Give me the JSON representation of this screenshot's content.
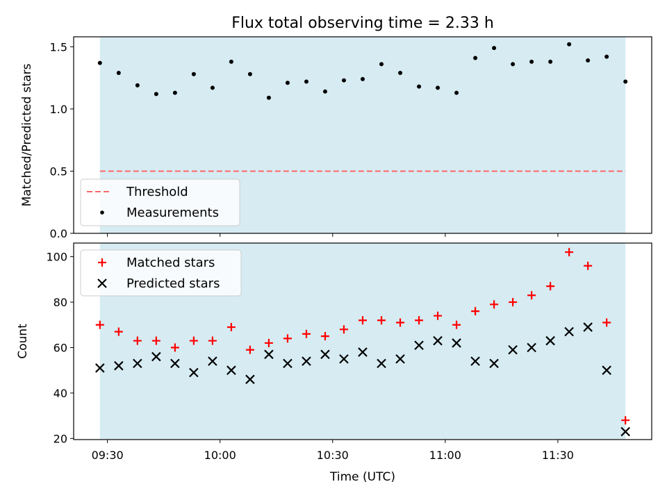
{
  "figure": {
    "title": "Flux total observing time = 2.33 h",
    "xlabel": "Time (UTC)",
    "colors": {
      "shade": "#add8e6",
      "threshold": "#ff6666",
      "matched": "#ff0000",
      "measurement": "#000000",
      "predicted": "#000000"
    }
  },
  "chart_data": [
    {
      "type": "scatter",
      "ylabel": "Matched/Predicted stars",
      "ylim": [
        0.0,
        1.58
      ],
      "yticks": [
        0.0,
        0.5,
        1.0,
        1.5
      ],
      "ytick_labels": [
        "0.0",
        "0.5",
        "1.0",
        "1.5"
      ],
      "xlim": [
        "09:21",
        "11:55"
      ],
      "shaded_span": [
        "09:28",
        "11:48"
      ],
      "threshold": {
        "name": "Threshold",
        "value": 0.5
      },
      "series": [
        {
          "name": "Measurements",
          "marker": "dot",
          "x": [
            "09:28",
            "09:33",
            "09:38",
            "09:43",
            "09:48",
            "09:53",
            "09:58",
            "10:03",
            "10:08",
            "10:13",
            "10:18",
            "10:23",
            "10:28",
            "10:33",
            "10:38",
            "10:43",
            "10:48",
            "10:53",
            "10:58",
            "11:03",
            "11:08",
            "11:13",
            "11:18",
            "11:23",
            "11:28",
            "11:33",
            "11:38",
            "11:43",
            "11:48"
          ],
          "y": [
            1.37,
            1.29,
            1.19,
            1.12,
            1.13,
            1.28,
            1.17,
            1.38,
            1.28,
            1.09,
            1.21,
            1.22,
            1.14,
            1.23,
            1.24,
            1.36,
            1.29,
            1.18,
            1.17,
            1.13,
            1.41,
            1.49,
            1.36,
            1.38,
            1.38,
            1.52,
            1.39,
            1.42,
            1.22
          ]
        }
      ],
      "legend": {
        "placement": "lower-left",
        "entries": [
          "Threshold",
          "Measurements"
        ]
      }
    },
    {
      "type": "scatter",
      "ylabel": "Count",
      "ylim": [
        19.5,
        106
      ],
      "yticks": [
        20,
        40,
        60,
        80,
        100
      ],
      "ytick_labels": [
        "20",
        "40",
        "60",
        "80",
        "100"
      ],
      "xlim": [
        "09:21",
        "11:55"
      ],
      "xticks": [
        "09:30",
        "10:00",
        "10:30",
        "11:00",
        "11:30"
      ],
      "shaded_span": [
        "09:28",
        "11:48"
      ],
      "series": [
        {
          "name": "Matched stars",
          "marker": "plus",
          "x": [
            "09:28",
            "09:33",
            "09:38",
            "09:43",
            "09:48",
            "09:53",
            "09:58",
            "10:03",
            "10:08",
            "10:13",
            "10:18",
            "10:23",
            "10:28",
            "10:33",
            "10:38",
            "10:43",
            "10:48",
            "10:53",
            "10:58",
            "11:03",
            "11:08",
            "11:13",
            "11:18",
            "11:23",
            "11:28",
            "11:33",
            "11:38",
            "11:43",
            "11:48"
          ],
          "y": [
            70,
            67,
            63,
            63,
            60,
            63,
            63,
            69,
            59,
            62,
            64,
            66,
            65,
            68,
            72,
            72,
            71,
            72,
            74,
            70,
            76,
            79,
            80,
            83,
            87,
            102,
            96,
            71,
            28
          ]
        },
        {
          "name": "Predicted stars",
          "marker": "x",
          "x": [
            "09:28",
            "09:33",
            "09:38",
            "09:43",
            "09:48",
            "09:53",
            "09:58",
            "10:03",
            "10:08",
            "10:13",
            "10:18",
            "10:23",
            "10:28",
            "10:33",
            "10:38",
            "10:43",
            "10:48",
            "10:53",
            "10:58",
            "11:03",
            "11:08",
            "11:13",
            "11:18",
            "11:23",
            "11:28",
            "11:33",
            "11:38",
            "11:43",
            "11:48"
          ],
          "y": [
            51,
            52,
            53,
            56,
            53,
            49,
            54,
            50,
            46,
            57,
            53,
            54,
            57,
            55,
            58,
            53,
            55,
            61,
            63,
            62,
            54,
            53,
            59,
            60,
            63,
            67,
            69,
            50,
            23
          ]
        }
      ],
      "legend": {
        "placement": "upper-left",
        "entries": [
          "Matched stars",
          "Predicted stars"
        ]
      }
    }
  ]
}
